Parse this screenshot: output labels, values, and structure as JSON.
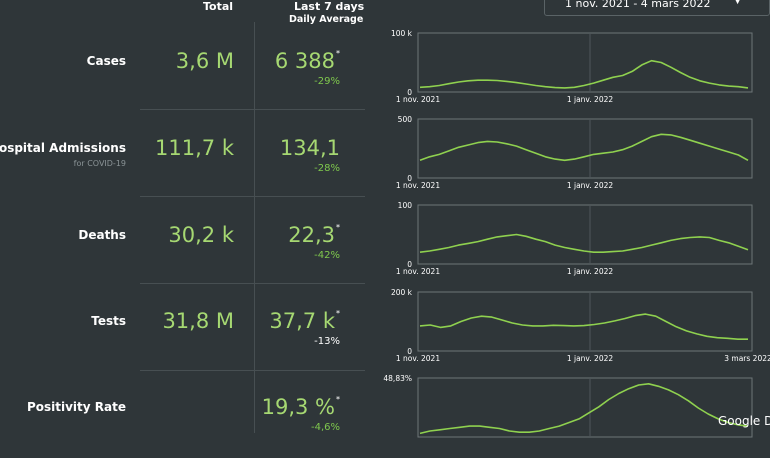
{
  "header": {
    "total_label": "Total",
    "last7_label": "Last 7 days",
    "daily_avg_label": "Daily Average",
    "date_range": "1 nov. 2021 - 4 mars 2022"
  },
  "colors": {
    "value_green": "#a6d872",
    "line_green": "#8fd14f",
    "background": "#2f3639"
  },
  "rows": [
    {
      "label": "Cases",
      "sublabel": "",
      "total": "3,6 M",
      "avg": "6 388",
      "asterisk": "*",
      "change": "-29%",
      "change_color": "green"
    },
    {
      "label": "Hospital Admissions",
      "sublabel": "for COVID-19",
      "total": "111,7 k",
      "avg": "134,1",
      "asterisk": "",
      "change": "-28%",
      "change_color": "green"
    },
    {
      "label": "Deaths",
      "sublabel": "",
      "total": "30,2 k",
      "avg": "22,3",
      "asterisk": "*",
      "change": "-42%",
      "change_color": "green"
    },
    {
      "label": "Tests",
      "sublabel": "",
      "total": "31,8 M",
      "avg": "37,7 k",
      "asterisk": "*",
      "change": "-13%",
      "change_color": "white"
    },
    {
      "label": "Positivity Rate",
      "sublabel": "",
      "total": "",
      "avg": "19,3 %",
      "asterisk": "*",
      "change": "-4,6%",
      "change_color": "green"
    }
  ],
  "footer": {
    "google": "Google D"
  },
  "chart_data": [
    {
      "type": "line",
      "title": "",
      "ylim": [
        0,
        100000
      ],
      "y_tick_labels": [
        "100 k",
        "0"
      ],
      "x_tick_labels": [
        "1 nov. 2021",
        "1 janv. 2022"
      ],
      "x": [
        0,
        10,
        20,
        30,
        40,
        50,
        60,
        70,
        80,
        90,
        100,
        110,
        120,
        130,
        140,
        150,
        160,
        170,
        180,
        190,
        200,
        210,
        220,
        230,
        240,
        250,
        260,
        270,
        280,
        290,
        300,
        310,
        320,
        330,
        340
      ],
      "series": [
        {
          "values": [
            8000,
            9000,
            11000,
            14000,
            17000,
            19000,
            20000,
            20000,
            19500,
            18000,
            16000,
            13500,
            11000,
            9000,
            7500,
            7000,
            8000,
            11000,
            15000,
            20000,
            25000,
            28000,
            35000,
            46000,
            53000,
            50000,
            42000,
            33000,
            25000,
            19000,
            15000,
            12000,
            10000,
            9000,
            7000
          ]
        }
      ]
    },
    {
      "type": "line",
      "title": "",
      "ylim": [
        0,
        500
      ],
      "y_tick_labels": [
        "500",
        "0"
      ],
      "x_tick_labels": [
        "1 nov. 2021",
        "1 janv. 2022"
      ],
      "x": [
        0,
        10,
        20,
        30,
        40,
        50,
        60,
        70,
        80,
        90,
        100,
        110,
        120,
        130,
        140,
        150,
        160,
        170,
        180,
        190,
        200,
        210,
        220,
        230,
        240,
        250,
        260,
        270,
        280,
        290,
        300,
        310,
        320,
        330,
        340
      ],
      "series": [
        {
          "values": [
            150,
            180,
            200,
            230,
            260,
            280,
            300,
            310,
            305,
            290,
            270,
            240,
            210,
            180,
            160,
            150,
            160,
            180,
            200,
            210,
            220,
            240,
            270,
            310,
            350,
            370,
            365,
            345,
            320,
            295,
            270,
            245,
            220,
            195,
            150
          ]
        }
      ]
    },
    {
      "type": "line",
      "title": "",
      "ylim": [
        0,
        100
      ],
      "y_tick_labels": [
        "100",
        "0"
      ],
      "x_tick_labels": [
        "1 nov. 2021",
        "1 janv. 2022"
      ],
      "x": [
        0,
        10,
        20,
        30,
        40,
        50,
        60,
        70,
        80,
        90,
        100,
        110,
        120,
        130,
        140,
        150,
        160,
        170,
        180,
        190,
        200,
        210,
        220,
        230,
        240,
        250,
        260,
        270,
        280,
        290,
        300,
        310,
        320,
        330,
        340
      ],
      "series": [
        {
          "values": [
            20,
            22,
            25,
            28,
            32,
            35,
            38,
            42,
            46,
            48,
            50,
            47,
            42,
            38,
            32,
            28,
            25,
            22,
            20,
            20,
            21,
            22,
            25,
            28,
            32,
            36,
            40,
            43,
            45,
            46,
            45,
            40,
            36,
            30,
            24
          ]
        }
      ]
    },
    {
      "type": "line",
      "title": "",
      "ylim": [
        0,
        200000
      ],
      "y_tick_labels": [
        "200 k",
        "0"
      ],
      "x_tick_labels": [
        "1 nov. 2021",
        "1 janv. 2022",
        "3 mars 2022"
      ],
      "x": [
        0,
        10,
        20,
        30,
        40,
        50,
        60,
        70,
        80,
        90,
        100,
        110,
        120,
        130,
        140,
        150,
        160,
        170,
        180,
        190,
        200,
        210,
        220,
        230,
        240,
        250,
        260,
        270,
        280,
        290,
        300,
        310,
        320
      ],
      "series": [
        {
          "values": [
            85000,
            88000,
            80000,
            85000,
            100000,
            112000,
            118000,
            115000,
            105000,
            95000,
            88000,
            85000,
            85000,
            87000,
            86000,
            85000,
            86000,
            90000,
            95000,
            102000,
            110000,
            120000,
            125000,
            118000,
            100000,
            82000,
            68000,
            58000,
            50000,
            45000,
            43000,
            40000,
            40000
          ]
        }
      ]
    },
    {
      "type": "line",
      "title": "",
      "ylim": [
        0,
        48.83
      ],
      "y_tick_labels": [
        "48,83%"
      ],
      "x_tick_labels": [],
      "x": [
        0,
        10,
        20,
        30,
        40,
        50,
        60,
        70,
        80,
        90,
        100,
        110,
        120,
        130,
        140,
        150,
        160,
        170,
        180,
        190,
        200,
        210,
        220,
        230,
        240,
        250,
        260,
        270,
        280,
        290,
        300,
        310,
        320,
        330
      ],
      "series": [
        {
          "values": [
            3,
            5,
            6,
            7,
            8,
            9,
            9,
            8,
            7,
            5,
            4,
            4,
            5,
            7,
            9,
            12,
            15,
            20,
            25,
            31,
            36,
            40,
            43,
            44,
            42,
            39,
            35,
            30,
            24,
            19,
            15,
            12,
            10,
            9
          ]
        }
      ]
    }
  ]
}
